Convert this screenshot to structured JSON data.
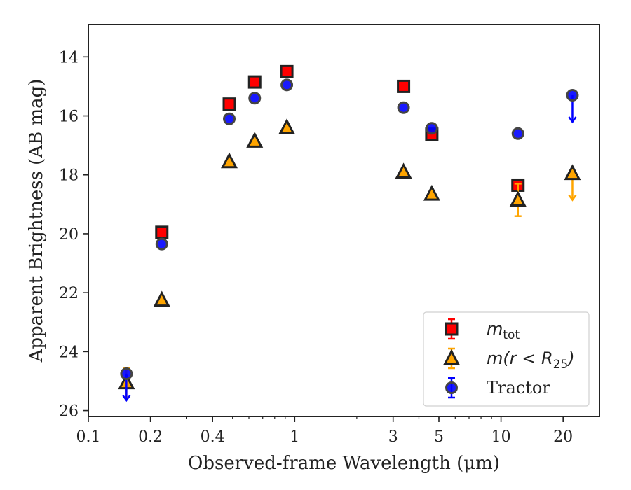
{
  "chart_data": {
    "type": "scatter",
    "xlabel": "Observed-frame Wavelength (μm)",
    "ylabel": "Apparent Brightness (AB mag)",
    "x_scale": "log",
    "xlim": [
      0.1,
      30
    ],
    "ylim": [
      26.2,
      12.9
    ],
    "y_inverted": true,
    "grid": false,
    "legend_position": "bottom-right",
    "x_ticks": [
      {
        "value": 0.1,
        "label": "0.1"
      },
      {
        "value": 0.2,
        "label": "0.2"
      },
      {
        "value": 0.4,
        "label": "0.4"
      },
      {
        "value": 1,
        "label": "1"
      },
      {
        "value": 3,
        "label": "3"
      },
      {
        "value": 5,
        "label": "5"
      },
      {
        "value": 10,
        "label": "10"
      },
      {
        "value": 20,
        "label": "20"
      }
    ],
    "y_ticks": [
      14,
      16,
      18,
      20,
      22,
      24,
      26
    ],
    "series": [
      {
        "name": "m_tot",
        "legend_label": {
          "base": "m",
          "sub": "tot"
        },
        "marker": "square",
        "face_color": "#ff0000",
        "edge_color": "#222222",
        "error_color": "#ff0000",
        "points": [
          {
            "x": 0.227,
            "y": 19.95
          },
          {
            "x": 0.482,
            "y": 15.6
          },
          {
            "x": 0.64,
            "y": 14.85
          },
          {
            "x": 0.916,
            "y": 14.5
          },
          {
            "x": 3.37,
            "y": 15.0
          },
          {
            "x": 4.62,
            "y": 16.62
          },
          {
            "x": 12.08,
            "y": 18.35
          }
        ]
      },
      {
        "name": "m(r < R25)",
        "legend_label": {
          "base": "m(r < R",
          "sub": "25",
          "end": ")"
        },
        "marker": "triangle",
        "face_color": "#ffa500",
        "edge_color": "#222222",
        "error_color": "#ffa500",
        "points": [
          {
            "x": 0.153,
            "y": 25.05,
            "yerr": 0.5
          },
          {
            "x": 0.227,
            "y": 22.25
          },
          {
            "x": 0.482,
            "y": 17.55
          },
          {
            "x": 0.64,
            "y": 16.85
          },
          {
            "x": 0.916,
            "y": 16.4
          },
          {
            "x": 3.37,
            "y": 17.9
          },
          {
            "x": 4.62,
            "y": 18.65
          },
          {
            "x": 12.08,
            "y": 18.85,
            "yerr": 0.55
          },
          {
            "x": 22.19,
            "y": 17.95,
            "upper_limit": true
          }
        ]
      },
      {
        "name": "Tractor",
        "legend_label": {
          "base": "Tractor"
        },
        "marker": "circle",
        "face_color": "#0000ff",
        "edge_color": "#444444",
        "error_color": "#0000ff",
        "points": [
          {
            "x": 0.153,
            "y": 24.75,
            "upper_limit": true
          },
          {
            "x": 0.227,
            "y": 20.35
          },
          {
            "x": 0.482,
            "y": 16.1
          },
          {
            "x": 0.64,
            "y": 15.4
          },
          {
            "x": 0.916,
            "y": 14.95
          },
          {
            "x": 3.37,
            "y": 15.72
          },
          {
            "x": 4.62,
            "y": 16.42
          },
          {
            "x": 12.08,
            "y": 16.6
          },
          {
            "x": 22.19,
            "y": 15.3,
            "upper_limit": true
          }
        ]
      }
    ]
  }
}
